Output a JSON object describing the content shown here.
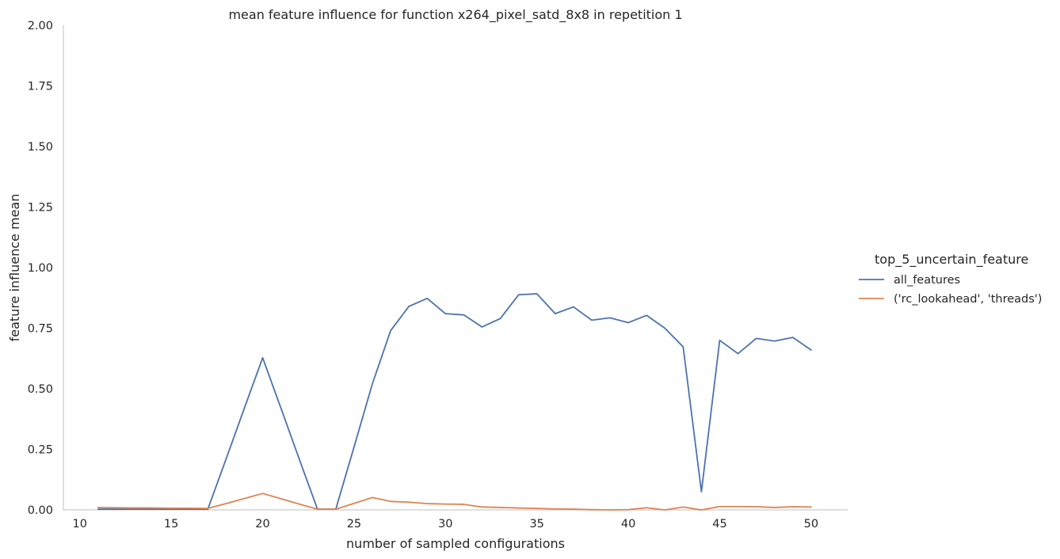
{
  "chart_data": {
    "type": "line",
    "title": "mean feature influence for function x264_pixel_satd_8x8 in repetition 1",
    "xlabel": "number of sampled configurations",
    "ylabel": "feature influence mean",
    "xlim": [
      9.1,
      52.0
    ],
    "ylim": [
      0,
      2.0
    ],
    "xticks": [
      10,
      15,
      20,
      25,
      30,
      35,
      40,
      45,
      50
    ],
    "yticks": [
      0.0,
      0.25,
      0.5,
      0.75,
      1.0,
      1.25,
      1.5,
      1.75,
      2.0
    ],
    "ytick_labels": [
      "0.00",
      "0.25",
      "0.50",
      "0.75",
      "1.00",
      "1.25",
      "1.50",
      "1.75",
      "2.00"
    ],
    "grid": false,
    "legend": {
      "title": "top_5_uncertain_feature",
      "placement": "right"
    },
    "series": [
      {
        "name": "all_features",
        "color": "#4c72b0",
        "x": [
          11,
          12,
          13,
          14,
          15,
          16,
          17,
          18,
          19,
          20,
          21,
          22,
          23,
          24,
          25,
          26,
          27,
          28,
          29,
          30,
          31,
          32,
          33,
          34,
          35,
          36,
          37,
          38,
          39,
          40,
          41,
          42,
          43,
          44,
          45,
          46,
          47,
          48,
          49,
          50
        ],
        "y": [
          0.003,
          0.003,
          0.003,
          0.003,
          0.003,
          0.003,
          0.003,
          0.21,
          0.42,
          0.628,
          0.42,
          0.21,
          0.003,
          0.003,
          0.26,
          0.52,
          0.74,
          0.84,
          0.873,
          0.81,
          0.805,
          0.755,
          0.79,
          0.888,
          0.892,
          0.81,
          0.838,
          0.783,
          0.793,
          0.773,
          0.803,
          0.75,
          0.673,
          0.075,
          0.7,
          0.645,
          0.708,
          0.697,
          0.712,
          0.66
        ]
      },
      {
        "name": "('rc_lookahead', 'threads')",
        "color": "#dd8452",
        "x": [
          11,
          12,
          13,
          14,
          15,
          16,
          17,
          18,
          19,
          20,
          21,
          22,
          23,
          24,
          25,
          26,
          27,
          28,
          29,
          30,
          31,
          32,
          33,
          34,
          35,
          36,
          37,
          38,
          39,
          40,
          41,
          42,
          43,
          44,
          45,
          46,
          47,
          48,
          49,
          50
        ],
        "y": [
          0.01,
          0.009,
          0.008,
          0.008,
          0.007,
          0.007,
          0.006,
          0.026,
          0.047,
          0.068,
          0.046,
          0.024,
          0.003,
          0.003,
          0.027,
          0.051,
          0.035,
          0.032,
          0.026,
          0.024,
          0.023,
          0.012,
          0.01,
          0.008,
          0.006,
          0.004,
          0.003,
          0.001,
          0.0,
          0.001,
          0.009,
          0.0,
          0.012,
          0.0,
          0.014,
          0.014,
          0.013,
          0.01,
          0.013,
          0.012
        ]
      }
    ]
  }
}
